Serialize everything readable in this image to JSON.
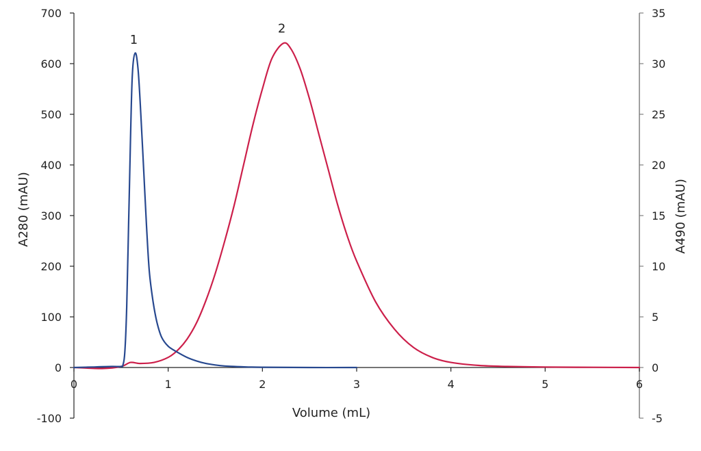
{
  "chart_data": {
    "type": "line",
    "title": "",
    "xlabel": "Volume (mL)",
    "ylabel": "A280 (mAU)",
    "y2label": "A490 (mAU)",
    "xlim": [
      0,
      6
    ],
    "ylim": [
      -100,
      700
    ],
    "y2lim": [
      -5,
      35
    ],
    "x_ticks": [
      "0",
      "1",
      "2",
      "3",
      "4",
      "5",
      "6"
    ],
    "y_ticks": [
      "-100",
      "0",
      "100",
      "200",
      "300",
      "400",
      "500",
      "600",
      "700"
    ],
    "y2_ticks": [
      "-5",
      "0",
      "5",
      "10",
      "15",
      "20",
      "25",
      "30",
      "35"
    ],
    "grid": false,
    "legend": null,
    "annotations": [
      {
        "text": "1",
        "x": 0.65,
        "y_axis": "left",
        "y": 650
      },
      {
        "text": "2",
        "x": 2.22,
        "y_axis": "right",
        "y": 33.6
      }
    ],
    "series": [
      {
        "name": "A280",
        "axis": "left",
        "color": "#27488f",
        "x": [
          0,
          0.2,
          0.4,
          0.5,
          0.52,
          0.54,
          0.56,
          0.58,
          0.6,
          0.62,
          0.65,
          0.68,
          0.71,
          0.74,
          0.77,
          0.8,
          0.84,
          0.88,
          0.93,
          1.0,
          1.1,
          1.2,
          1.3,
          1.4,
          1.5,
          1.6,
          1.7,
          1.85,
          2.0,
          2.5,
          3.0
        ],
        "values": [
          0,
          1,
          2,
          2,
          5,
          30,
          120,
          280,
          450,
          580,
          621,
          590,
          500,
          390,
          280,
          190,
          130,
          90,
          60,
          42,
          30,
          20,
          13,
          8,
          5,
          3,
          2,
          1,
          0.5,
          0,
          0
        ]
      },
      {
        "name": "A490",
        "axis": "right",
        "color": "#cc1f4a",
        "x": [
          0,
          0.3,
          0.5,
          0.6,
          0.7,
          0.85,
          1.0,
          1.1,
          1.2,
          1.3,
          1.4,
          1.5,
          1.6,
          1.7,
          1.8,
          1.9,
          2.0,
          2.1,
          2.22,
          2.3,
          2.4,
          2.5,
          2.6,
          2.7,
          2.8,
          2.9,
          3.0,
          3.2,
          3.4,
          3.6,
          3.8,
          4.0,
          4.3,
          4.6,
          5.0,
          5.5,
          6.0
        ],
        "values": [
          0,
          -0.1,
          0.1,
          0.5,
          0.4,
          0.5,
          1.0,
          1.7,
          2.8,
          4.4,
          6.6,
          9.3,
          12.5,
          16.0,
          20.0,
          24.0,
          27.5,
          30.5,
          32.0,
          31.5,
          29.5,
          26.5,
          23.0,
          19.5,
          16.0,
          13.0,
          10.5,
          6.5,
          3.8,
          2.0,
          1.0,
          0.5,
          0.2,
          0.1,
          0.05,
          0.02,
          0
        ]
      }
    ]
  },
  "colors": {
    "axis_left": "#222222",
    "axis_right": "#808080",
    "text": "#222222"
  }
}
